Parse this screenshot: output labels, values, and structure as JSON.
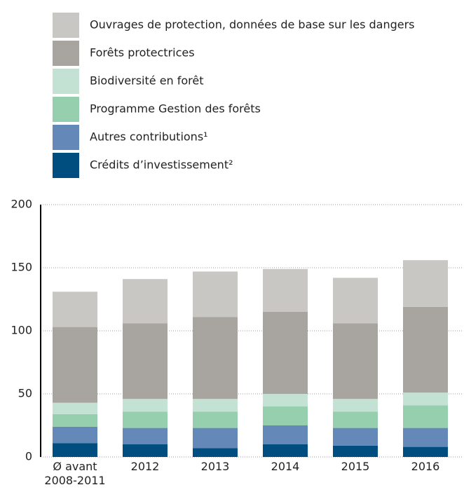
{
  "chart_data": {
    "type": "stacked_bar",
    "categories": [
      "Ø avant 2008-2011",
      "2012",
      "2013",
      "2014",
      "2015",
      "2016"
    ],
    "series": [
      {
        "name": "Crédits d’investissement²",
        "color": "#004d80",
        "values": [
          11,
          10,
          7,
          10,
          9,
          8
        ]
      },
      {
        "name": "Autres contributions¹",
        "color": "#6488b8",
        "values": [
          13,
          13,
          16,
          15,
          14,
          15
        ]
      },
      {
        "name": "Programme Gestion des forêts",
        "color": "#96cfae",
        "values": [
          10,
          13,
          13,
          15,
          13,
          18
        ]
      },
      {
        "name": "Biodiversité en forêt",
        "color": "#c3e2d3",
        "values": [
          9,
          10,
          10,
          10,
          10,
          10
        ]
      },
      {
        "name": "Forêts protectrices",
        "color": "#a8a4a0",
        "values": [
          60,
          60,
          65,
          65,
          60,
          68
        ]
      },
      {
        "name": "Ouvrages de protection, données de base sur les dangers",
        "color": "#c9c7c4",
        "values": [
          28,
          35,
          36,
          34,
          36,
          37
        ]
      }
    ],
    "ylim": [
      0,
      200
    ],
    "yticks": [
      0,
      50,
      100,
      150,
      200
    ],
    "grid": true,
    "legend": "top"
  }
}
